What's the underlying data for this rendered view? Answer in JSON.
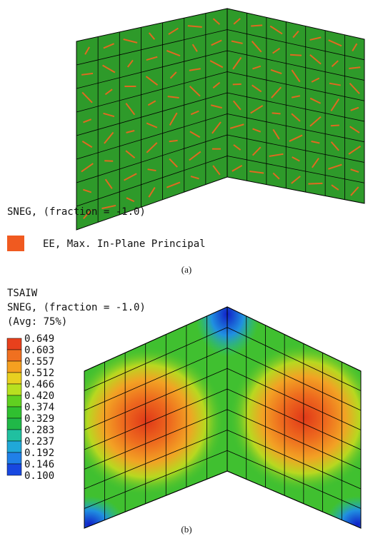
{
  "panel_a": {
    "header": "SNEG, (fraction = -1.0)",
    "legend_label": "EE, Max. In-Plane Principal",
    "caption": "(a)"
  },
  "panel_b": {
    "title": "TSAIW",
    "subtitle": "SNEG, (fraction = -1.0)",
    "averaging": "(Avg: 75%)",
    "legend": {
      "labels": [
        "0.649",
        "0.603",
        "0.557",
        "0.512",
        "0.466",
        "0.420",
        "0.374",
        "0.329",
        "0.283",
        "0.237",
        "0.192",
        "0.146",
        "0.100"
      ],
      "colors": [
        "#e8401c",
        "#f07020",
        "#f5a020",
        "#e8d020",
        "#b8e020",
        "#60d020",
        "#30c030",
        "#20b848",
        "#20c0a0",
        "#20a8d8",
        "#2080e8",
        "#1848e0",
        "#0a10c8"
      ]
    },
    "caption": "(b)"
  }
}
